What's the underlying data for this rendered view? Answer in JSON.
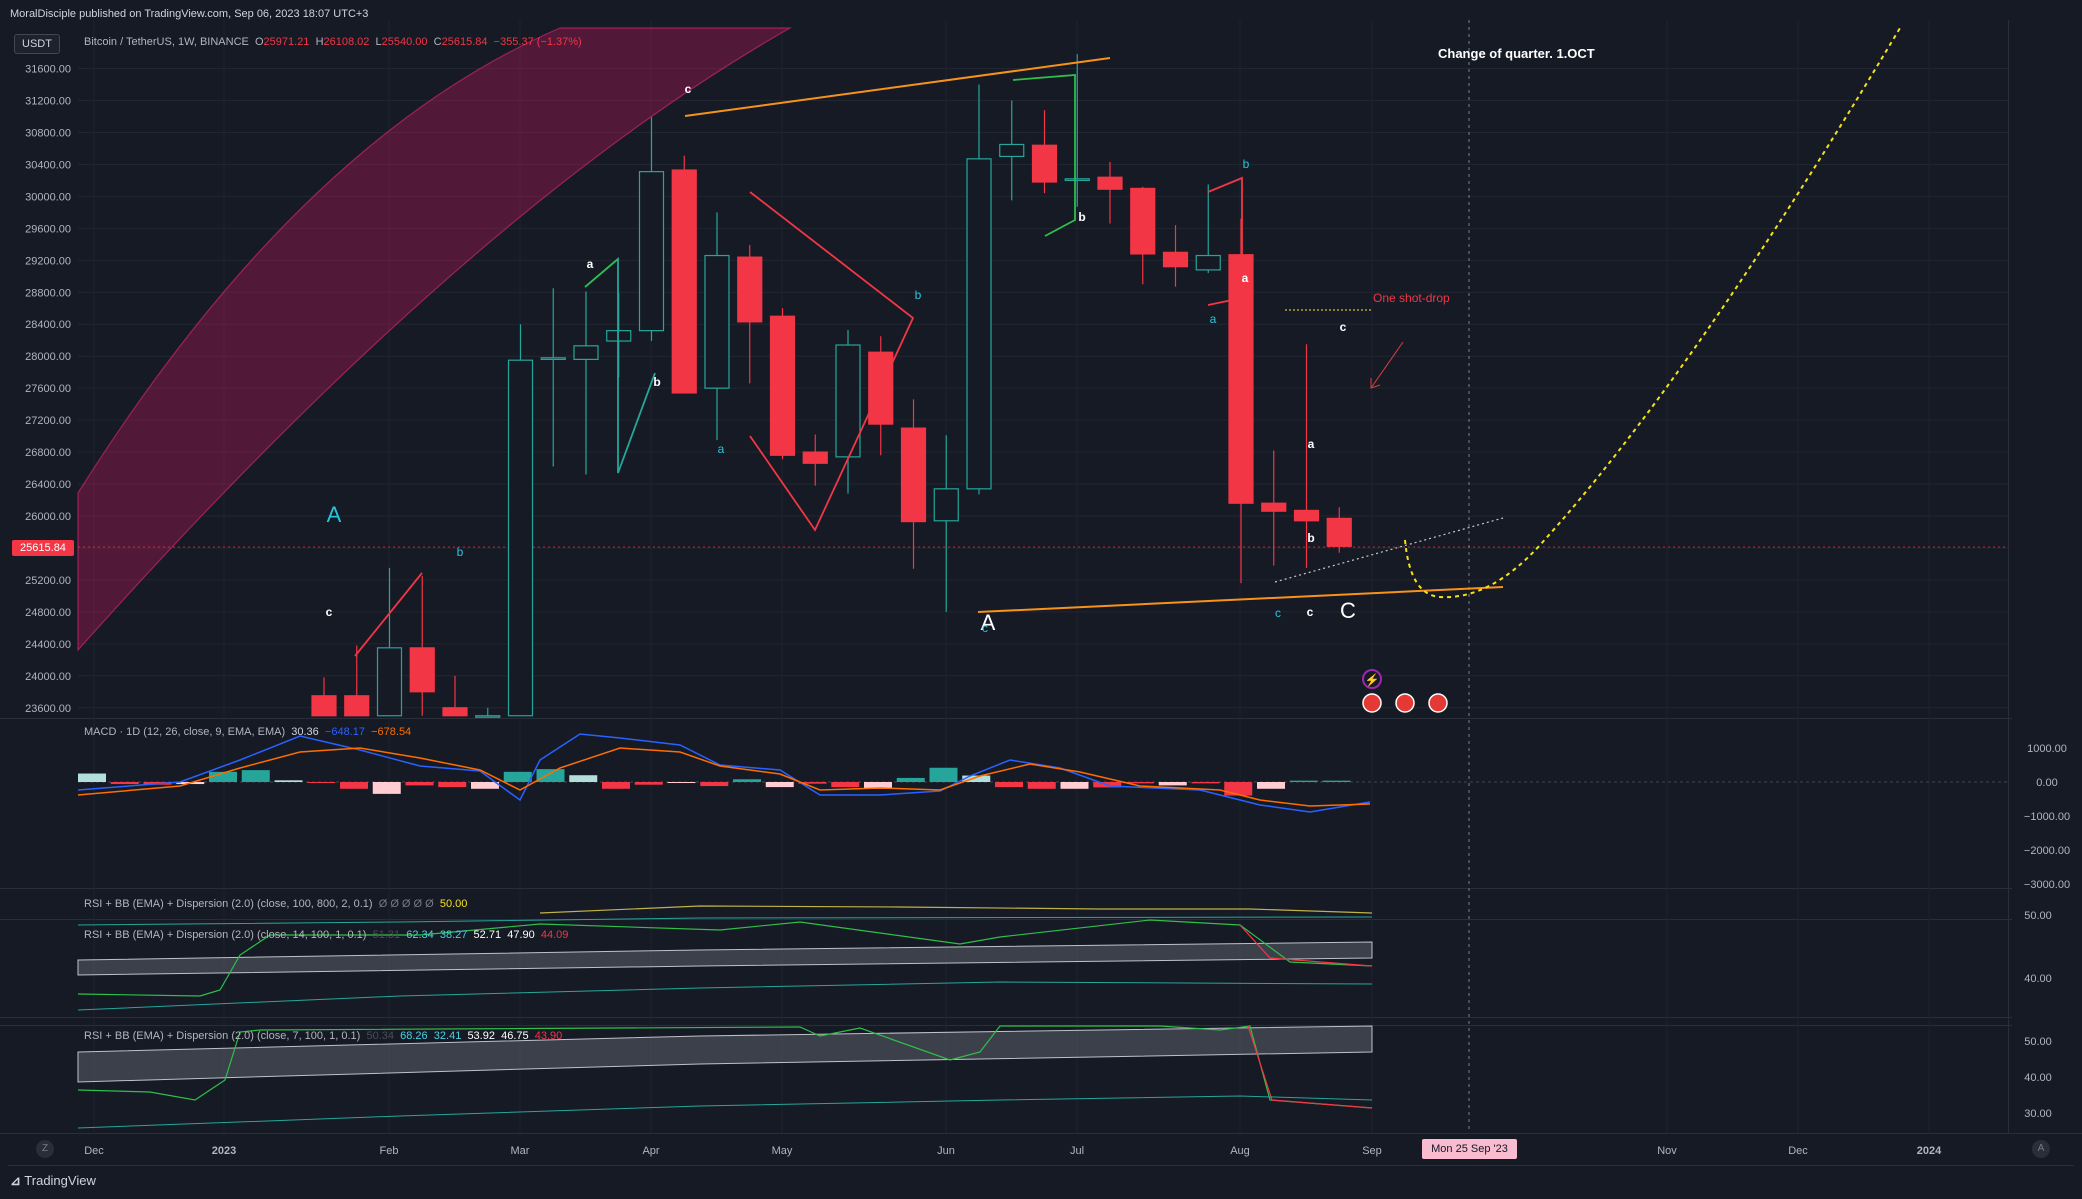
{
  "publish_line": "MoralDisciple published on TradingView.com, Sep 06, 2023 18:07 UTC+3",
  "currency_button": "USDT",
  "symbol": {
    "name": "Bitcoin / TetherUS, 1W, BINANCE",
    "o_label": "O",
    "o_value": "25971.21",
    "h_label": "H",
    "h_value": "26108.02",
    "l_label": "L",
    "l_value": "25540.00",
    "c_label": "C",
    "c_value": "25615.84",
    "change": "−355.37 (−1.37%)"
  },
  "last_price_tag": "25615.84",
  "annotations": {
    "quarter": "Change of quarter. 1.OCT",
    "one_shot": "One shot-drop"
  },
  "macd": {
    "title": "MACD · 1D (12, 26, close, 9, EMA, EMA)",
    "v1": "30.36",
    "v2": "−648.17",
    "v3": "−678.54"
  },
  "rsi1": {
    "title": "RSI + BB (EMA) + Dispersion (2.0) (close, 100, 800, 2, 0.1)",
    "dim": "Ø Ø Ø Ø Ø",
    "v": "50.00"
  },
  "rsi2": {
    "title": "RSI + BB (EMA) + Dispersion (2.0) (close, 14, 100, 1, 0.1)",
    "dim": "51.31",
    "v1": "62.34",
    "v2": "38.27",
    "v3": "52.71",
    "v4": "47.90",
    "v5": "44.09"
  },
  "rsi3": {
    "title": "RSI + BB (EMA) + Dispersion (2.0) (close, 7, 100, 1, 0.1)",
    "dim": "50.34",
    "v1": "68.26",
    "v2": "32.41",
    "v3": "53.92",
    "v4": "46.75",
    "v5": "43.90"
  },
  "time_axis": [
    "Dec",
    "2023",
    "Feb",
    "Mar",
    "Apr",
    "May",
    "Jun",
    "Jul",
    "Aug",
    "Sep",
    "Nov",
    "Dec",
    "2024"
  ],
  "crosshair_date": "Mon 25 Sep '23",
  "brand": "TradingView",
  "z_button": "Z",
  "a_button": "A",
  "colors": {
    "bg": "#161a25",
    "up": "#26a69a",
    "down": "#f23645",
    "orange": "#f7931a",
    "yellow": "#f5e31c",
    "pink_band": "#c2185b"
  },
  "chart_data": {
    "type": "candlestick",
    "title": "Bitcoin / TetherUS, 1W, BINANCE",
    "y_ticks": [
      "31600.00",
      "31200.00",
      "30800.00",
      "30400.00",
      "30000.00",
      "29600.00",
      "29200.00",
      "28800.00",
      "28400.00",
      "28000.00",
      "27600.00",
      "27200.00",
      "26800.00",
      "26400.00",
      "26000.00",
      "25600.00",
      "25200.00",
      "24800.00",
      "24400.00",
      "24000.00",
      "23600.00"
    ],
    "ylim": [
      23500,
      31950
    ],
    "candles": [
      {
        "o": 23750,
        "h": 23980,
        "l": 23500,
        "c": 23500
      },
      {
        "o": 23750,
        "h": 24380,
        "l": 23500,
        "c": 23500
      },
      {
        "o": 23500,
        "h": 25350,
        "l": 23500,
        "c": 24350
      },
      {
        "o": 24350,
        "h": 25250,
        "l": 23500,
        "c": 23800
      },
      {
        "o": 23600,
        "h": 24000,
        "l": 23500,
        "c": 23500
      },
      {
        "o": 23500,
        "h": 23600,
        "l": 23500,
        "c": 23500
      },
      {
        "o": 23500,
        "h": 28400,
        "l": 23500,
        "c": 27950
      },
      {
        "o": 27960,
        "h": 28850,
        "l": 26620,
        "c": 27980
      },
      {
        "o": 27960,
        "h": 28810,
        "l": 26520,
        "c": 28130
      },
      {
        "o": 28190,
        "h": 28790,
        "l": 27740,
        "c": 28320
      },
      {
        "o": 28320,
        "h": 30990,
        "l": 28190,
        "c": 30310
      },
      {
        "o": 30330,
        "h": 30510,
        "l": 27560,
        "c": 27540
      },
      {
        "o": 27600,
        "h": 29800,
        "l": 26950,
        "c": 29260
      },
      {
        "o": 29240,
        "h": 29390,
        "l": 27660,
        "c": 28430
      },
      {
        "o": 28500,
        "h": 28600,
        "l": 26710,
        "c": 26760
      },
      {
        "o": 26800,
        "h": 27020,
        "l": 26380,
        "c": 26660
      },
      {
        "o": 26740,
        "h": 28330,
        "l": 26280,
        "c": 28140
      },
      {
        "o": 28050,
        "h": 28250,
        "l": 26760,
        "c": 27150
      },
      {
        "o": 27100,
        "h": 27460,
        "l": 25340,
        "c": 25930
      },
      {
        "o": 25940,
        "h": 27010,
        "l": 24800,
        "c": 26340
      },
      {
        "o": 26340,
        "h": 31400,
        "l": 26270,
        "c": 30470
      },
      {
        "o": 30500,
        "h": 31200,
        "l": 29950,
        "c": 30650
      },
      {
        "o": 30640,
        "h": 31080,
        "l": 30040,
        "c": 30180
      },
      {
        "o": 30200,
        "h": 31780,
        "l": 29870,
        "c": 30220
      },
      {
        "o": 30240,
        "h": 30430,
        "l": 29660,
        "c": 30090
      },
      {
        "o": 30100,
        "h": 30120,
        "l": 28900,
        "c": 29280
      },
      {
        "o": 29300,
        "h": 29640,
        "l": 28870,
        "c": 29120
      },
      {
        "o": 29080,
        "h": 30150,
        "l": 29040,
        "c": 29260
      },
      {
        "o": 29270,
        "h": 29720,
        "l": 25160,
        "c": 26160
      },
      {
        "o": 26160,
        "h": 26820,
        "l": 25380,
        "c": 26060
      },
      {
        "o": 26070,
        "h": 28150,
        "l": 25350,
        "c": 25940
      },
      {
        "o": 25970,
        "h": 26110,
        "l": 25540,
        "c": 25620
      }
    ],
    "wave_labels": [
      "A",
      "a",
      "b",
      "c",
      "A",
      "a",
      "b",
      "c",
      "b",
      "a",
      "b",
      "c",
      "a",
      "b",
      "c",
      "c",
      "c",
      "C",
      "a",
      "b"
    ],
    "macd": {
      "ylim": [
        -3000,
        1000
      ],
      "ticks": [
        "1000.00",
        "0.00",
        "−1000.00",
        "−2000.00",
        "−3000.00"
      ]
    },
    "rsi1": {
      "ticks": [
        "50.00"
      ]
    },
    "rsi2": {
      "ticks": [
        "40.00"
      ]
    },
    "rsi3": {
      "ticks": [
        "50.00",
        "40.00",
        "30.00"
      ]
    }
  }
}
